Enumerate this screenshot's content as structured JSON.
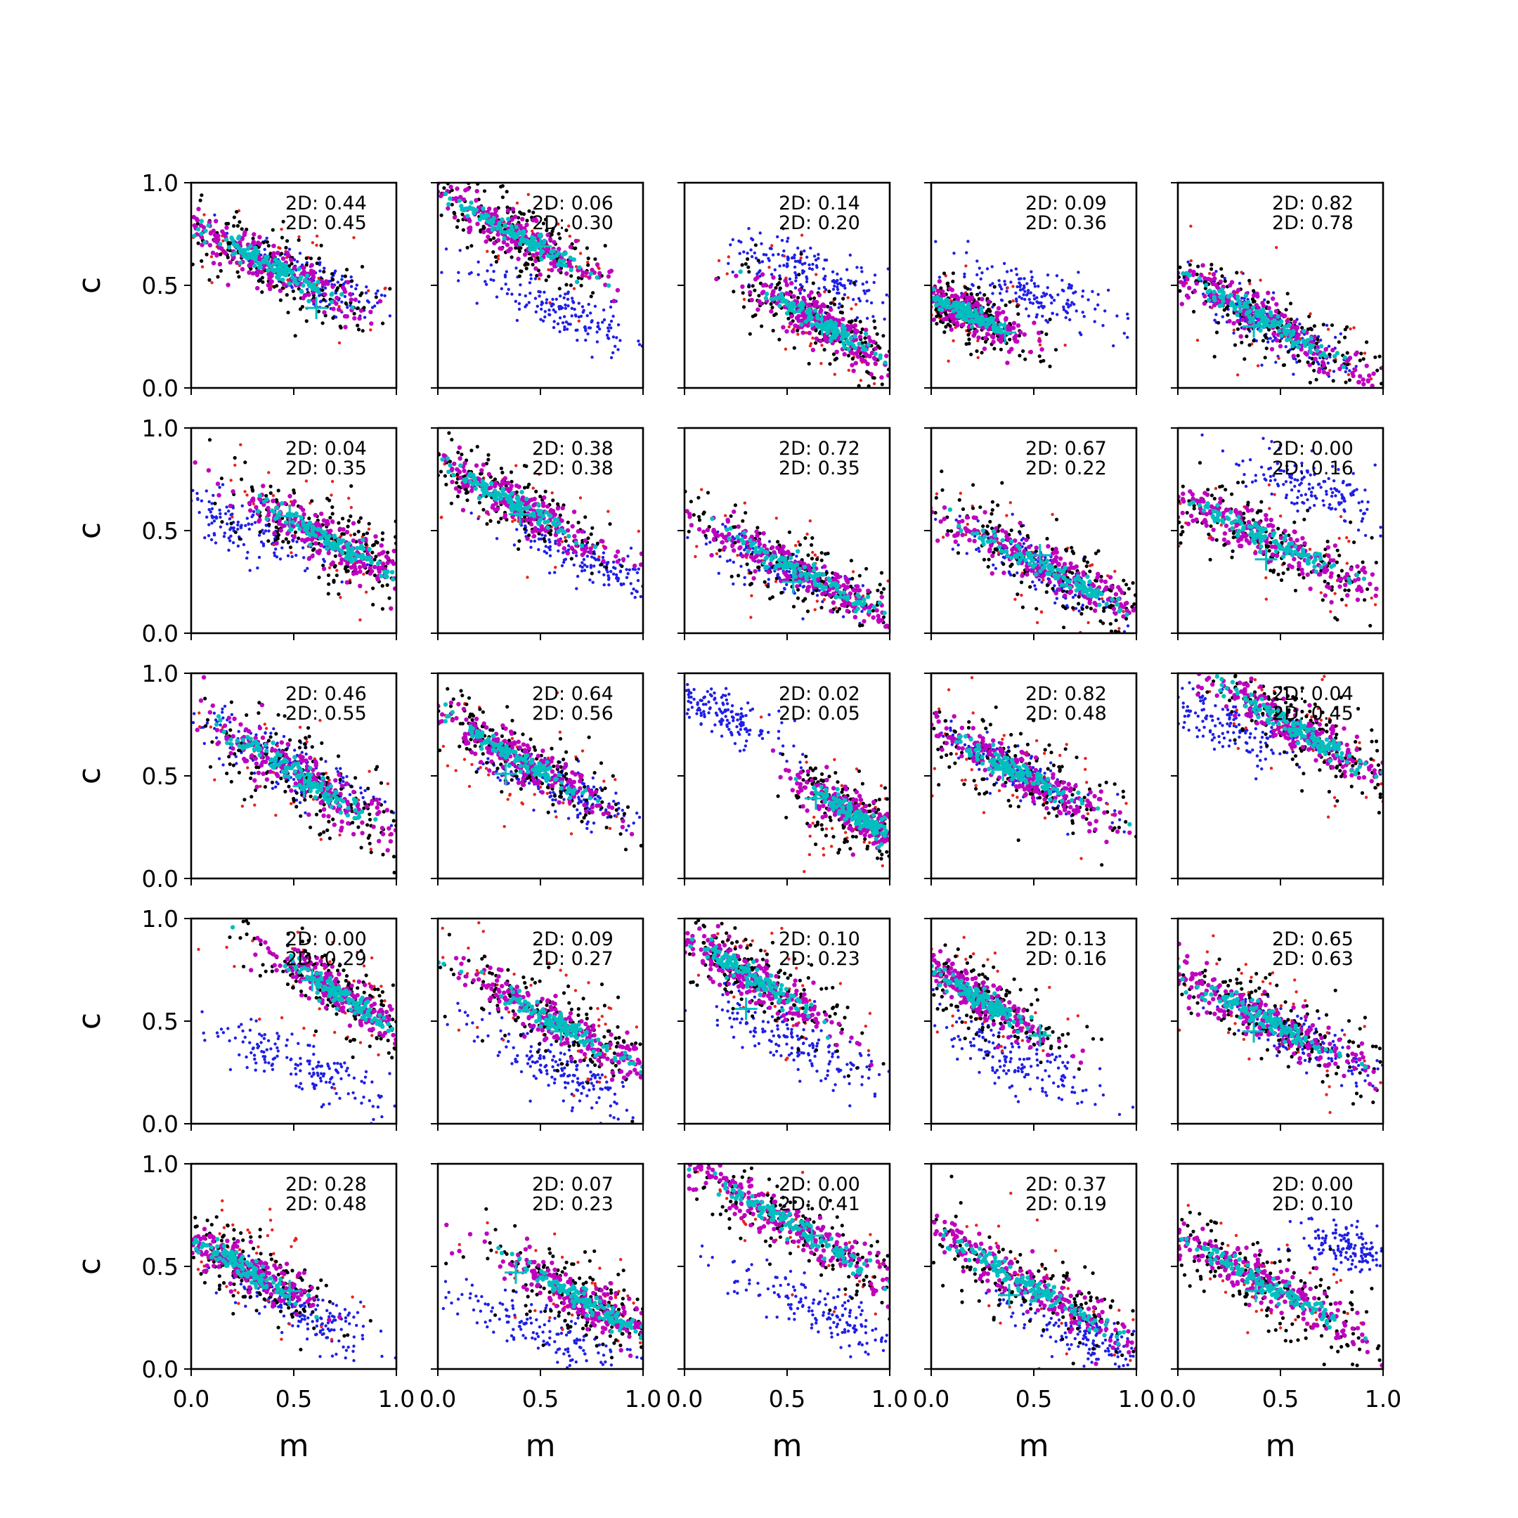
{
  "figure": {
    "xlabel": "m",
    "ylabel": "c",
    "xticks": [
      "0.0",
      "0.5",
      "1.0"
    ],
    "yticks": [
      "0.0",
      "0.5",
      "1.0"
    ]
  },
  "chart_data": {
    "type": "scatter",
    "xlim": [
      0,
      1
    ],
    "ylim": [
      0,
      1
    ],
    "grid": false,
    "colors": {
      "blue_samples": "#1f1fe6",
      "red_samples": "#e8231c",
      "black_samples": "#000000",
      "magenta_samples": "#bf00bf",
      "cyan_samples": "#00bfbf",
      "marker": "#00bfbf"
    },
    "panels": [
      {
        "row": 0,
        "col": 0,
        "stats": [
          "2D: 0.44",
          "2D: 0.45"
        ],
        "marker": [
          0.61,
          0.39
        ],
        "main": {
          "cx": 0.38,
          "cy": 0.6,
          "slope": -0.52,
          "len": 0.62,
          "w": 0.075
        },
        "blue": {
          "cx": 0.6,
          "cy": 0.52,
          "slope": -0.5,
          "len": 0.5,
          "w": 0.07
        }
      },
      {
        "row": 0,
        "col": 1,
        "stats": [
          "2D: 0.06",
          "2D: 0.30"
        ],
        "marker": [
          0.5,
          0.69
        ],
        "main": {
          "cx": 0.38,
          "cy": 0.75,
          "slope": -0.55,
          "len": 0.6,
          "w": 0.07
        },
        "blue": {
          "cx": 0.6,
          "cy": 0.38,
          "slope": -0.42,
          "len": 0.55,
          "w": 0.065
        }
      },
      {
        "row": 0,
        "col": 2,
        "stats": [
          "2D: 0.14",
          "2D: 0.20"
        ],
        "marker": [
          0.67,
          0.31
        ],
        "main": {
          "cx": 0.68,
          "cy": 0.31,
          "slope": -0.6,
          "len": 0.5,
          "w": 0.075
        },
        "blue": {
          "cx": 0.62,
          "cy": 0.56,
          "slope": -0.4,
          "len": 0.5,
          "w": 0.07
        }
      },
      {
        "row": 0,
        "col": 3,
        "stats": [
          "2D: 0.09",
          "2D: 0.36"
        ],
        "marker": [
          0.36,
          0.27
        ],
        "main": {
          "cx": 0.18,
          "cy": 0.36,
          "slope": -0.5,
          "len": 0.4,
          "w": 0.06
        },
        "blue": {
          "cx": 0.5,
          "cy": 0.45,
          "slope": -0.33,
          "len": 0.55,
          "w": 0.07
        }
      },
      {
        "row": 0,
        "col": 4,
        "stats": [
          "2D: 0.82",
          "2D: 0.78"
        ],
        "marker": [
          0.37,
          0.3
        ],
        "main": {
          "cx": 0.42,
          "cy": 0.33,
          "slope": -0.55,
          "len": 0.72,
          "w": 0.075
        },
        "blue": {
          "cx": 0.45,
          "cy": 0.3,
          "slope": -0.55,
          "len": 0.6,
          "w": 0.06
        }
      },
      {
        "row": 1,
        "col": 0,
        "stats": [
          "2D: 0.04",
          "2D: 0.35"
        ],
        "marker": [
          0.48,
          0.57
        ],
        "main": {
          "cx": 0.68,
          "cy": 0.45,
          "slope": -0.55,
          "len": 0.62,
          "w": 0.08
        },
        "blue": {
          "cx": 0.22,
          "cy": 0.52,
          "slope": -0.35,
          "len": 0.5,
          "w": 0.07
        }
      },
      {
        "row": 1,
        "col": 1,
        "stats": [
          "2D: 0.38",
          "2D: 0.38"
        ],
        "marker": [
          0.4,
          0.58
        ],
        "main": {
          "cx": 0.35,
          "cy": 0.65,
          "slope": -0.55,
          "len": 0.6,
          "w": 0.07
        },
        "blue": {
          "cx": 0.75,
          "cy": 0.35,
          "slope": -0.4,
          "len": 0.45,
          "w": 0.06
        }
      },
      {
        "row": 1,
        "col": 2,
        "stats": [
          "2D: 0.72",
          "2D: 0.35"
        ],
        "marker": [
          0.53,
          0.25
        ],
        "main": {
          "cx": 0.6,
          "cy": 0.28,
          "slope": -0.5,
          "len": 0.75,
          "w": 0.075
        },
        "blue": {
          "cx": 0.45,
          "cy": 0.33,
          "slope": -0.45,
          "len": 0.5,
          "w": 0.06
        }
      },
      {
        "row": 1,
        "col": 3,
        "stats": [
          "2D: 0.67",
          "2D: 0.22"
        ],
        "marker": [
          0.53,
          0.38
        ],
        "main": {
          "cx": 0.6,
          "cy": 0.3,
          "slope": -0.5,
          "len": 0.72,
          "w": 0.075
        },
        "blue": {
          "cx": 0.55,
          "cy": 0.3,
          "slope": -0.5,
          "len": 0.5,
          "w": 0.06
        }
      },
      {
        "row": 1,
        "col": 4,
        "stats": [
          "2D: 0.00",
          "2D: 0.16"
        ],
        "marker": [
          0.43,
          0.36
        ],
        "main": {
          "cx": 0.45,
          "cy": 0.45,
          "slope": -0.48,
          "len": 0.8,
          "w": 0.08
        },
        "blue": {
          "cx": 0.7,
          "cy": 0.7,
          "slope": -0.35,
          "len": 0.5,
          "w": 0.07
        }
      },
      {
        "row": 2,
        "col": 0,
        "stats": [
          "2D: 0.46",
          "2D: 0.55"
        ],
        "marker": [
          0.55,
          0.45
        ],
        "main": {
          "cx": 0.55,
          "cy": 0.48,
          "slope": -0.62,
          "len": 0.75,
          "w": 0.085
        },
        "blue": {
          "cx": 0.45,
          "cy": 0.58,
          "slope": -0.5,
          "len": 0.6,
          "w": 0.07
        }
      },
      {
        "row": 2,
        "col": 1,
        "stats": [
          "2D: 0.64",
          "2D: 0.56"
        ],
        "marker": [
          0.33,
          0.51
        ],
        "main": {
          "cx": 0.4,
          "cy": 0.58,
          "slope": -0.58,
          "len": 0.62,
          "w": 0.07
        },
        "blue": {
          "cx": 0.6,
          "cy": 0.45,
          "slope": -0.5,
          "len": 0.45,
          "w": 0.06
        }
      },
      {
        "row": 2,
        "col": 2,
        "stats": [
          "2D: 0.02",
          "2D: 0.05"
        ],
        "marker": [
          0.64,
          0.39
        ],
        "main": {
          "cx": 0.85,
          "cy": 0.3,
          "slope": -0.6,
          "len": 0.4,
          "w": 0.07
        },
        "blue": {
          "cx": 0.18,
          "cy": 0.8,
          "slope": -0.45,
          "len": 0.4,
          "w": 0.06
        }
      },
      {
        "row": 2,
        "col": 3,
        "stats": [
          "2D: 0.82",
          "2D: 0.48"
        ],
        "marker": [
          0.35,
          0.53
        ],
        "main": {
          "cx": 0.42,
          "cy": 0.52,
          "slope": -0.52,
          "len": 0.72,
          "w": 0.075
        },
        "blue": {
          "cx": 0.42,
          "cy": 0.52,
          "slope": -0.5,
          "len": 0.5,
          "w": 0.06
        }
      },
      {
        "row": 2,
        "col": 4,
        "stats": [
          "2D: 0.04",
          "2D: 0.45"
        ],
        "marker": [
          0.6,
          0.73
        ],
        "main": {
          "cx": 0.6,
          "cy": 0.72,
          "slope": -0.58,
          "len": 0.65,
          "w": 0.075
        },
        "blue": {
          "cx": 0.22,
          "cy": 0.75,
          "slope": -0.35,
          "len": 0.45,
          "w": 0.07
        }
      },
      {
        "row": 3,
        "col": 0,
        "stats": [
          "2D: 0.00",
          "2D: 0.29"
        ],
        "marker": [
          0.59,
          0.7
        ],
        "main": {
          "cx": 0.72,
          "cy": 0.63,
          "slope": -0.65,
          "len": 0.55,
          "w": 0.075
        },
        "blue": {
          "cx": 0.55,
          "cy": 0.28,
          "slope": -0.42,
          "len": 0.6,
          "w": 0.07
        }
      },
      {
        "row": 3,
        "col": 1,
        "stats": [
          "2D: 0.09",
          "2D: 0.27"
        ],
        "marker": [
          0.6,
          0.45
        ],
        "main": {
          "cx": 0.6,
          "cy": 0.48,
          "slope": -0.55,
          "len": 0.75,
          "w": 0.08
        },
        "blue": {
          "cx": 0.6,
          "cy": 0.25,
          "slope": -0.5,
          "len": 0.55,
          "w": 0.07
        }
      },
      {
        "row": 3,
        "col": 2,
        "stats": [
          "2D: 0.10",
          "2D: 0.23"
        ],
        "marker": [
          0.3,
          0.56
        ],
        "main": {
          "cx": 0.35,
          "cy": 0.7,
          "slope": -0.6,
          "len": 0.6,
          "w": 0.075
        },
        "blue": {
          "cx": 0.55,
          "cy": 0.4,
          "slope": -0.42,
          "len": 0.6,
          "w": 0.07
        }
      },
      {
        "row": 3,
        "col": 3,
        "stats": [
          "2D: 0.13",
          "2D: 0.16"
        ],
        "marker": [
          0.53,
          0.43
        ],
        "main": {
          "cx": 0.22,
          "cy": 0.62,
          "slope": -0.6,
          "len": 0.5,
          "w": 0.07
        },
        "blue": {
          "cx": 0.35,
          "cy": 0.35,
          "slope": -0.5,
          "len": 0.55,
          "w": 0.07
        }
      },
      {
        "row": 3,
        "col": 4,
        "stats": [
          "2D: 0.65",
          "2D: 0.63"
        ],
        "marker": [
          0.37,
          0.45
        ],
        "main": {
          "cx": 0.45,
          "cy": 0.5,
          "slope": -0.5,
          "len": 0.8,
          "w": 0.08
        },
        "blue": {
          "cx": 0.6,
          "cy": 0.42,
          "slope": -0.5,
          "len": 0.5,
          "w": 0.06
        }
      },
      {
        "row": 4,
        "col": 0,
        "stats": [
          "2D: 0.28",
          "2D: 0.48"
        ],
        "marker": [
          0.48,
          0.38
        ],
        "main": {
          "cx": 0.25,
          "cy": 0.5,
          "slope": -0.55,
          "len": 0.5,
          "w": 0.075
        },
        "blue": {
          "cx": 0.55,
          "cy": 0.28,
          "slope": -0.5,
          "len": 0.5,
          "w": 0.06
        }
      },
      {
        "row": 4,
        "col": 1,
        "stats": [
          "2D: 0.07",
          "2D: 0.23"
        ],
        "marker": [
          0.38,
          0.47
        ],
        "main": {
          "cx": 0.72,
          "cy": 0.33,
          "slope": -0.55,
          "len": 0.6,
          "w": 0.08
        },
        "blue": {
          "cx": 0.45,
          "cy": 0.2,
          "slope": -0.4,
          "len": 0.65,
          "w": 0.07
        }
      },
      {
        "row": 4,
        "col": 2,
        "stats": [
          "2D: 0.00",
          "2D: 0.41"
        ],
        "marker": [
          0.62,
          0.65
        ],
        "main": {
          "cx": 0.55,
          "cy": 0.68,
          "slope": -0.58,
          "len": 0.85,
          "w": 0.08
        },
        "blue": {
          "cx": 0.65,
          "cy": 0.28,
          "slope": -0.45,
          "len": 0.6,
          "w": 0.07
        }
      },
      {
        "row": 4,
        "col": 3,
        "stats": [
          "2D: 0.37",
          "2D: 0.19"
        ],
        "marker": [
          0.38,
          0.36
        ],
        "main": {
          "cx": 0.45,
          "cy": 0.42,
          "slope": -0.58,
          "len": 0.85,
          "w": 0.08
        },
        "blue": {
          "cx": 0.75,
          "cy": 0.15,
          "slope": -0.5,
          "len": 0.45,
          "w": 0.06
        }
      },
      {
        "row": 4,
        "col": 4,
        "stats": [
          "2D: 0.00",
          "2D: 0.10"
        ],
        "marker": [
          0.38,
          0.38
        ],
        "main": {
          "cx": 0.42,
          "cy": 0.42,
          "slope": -0.55,
          "len": 0.8,
          "w": 0.08
        },
        "blue": {
          "cx": 0.85,
          "cy": 0.58,
          "slope": -0.3,
          "len": 0.35,
          "w": 0.07
        }
      }
    ]
  }
}
